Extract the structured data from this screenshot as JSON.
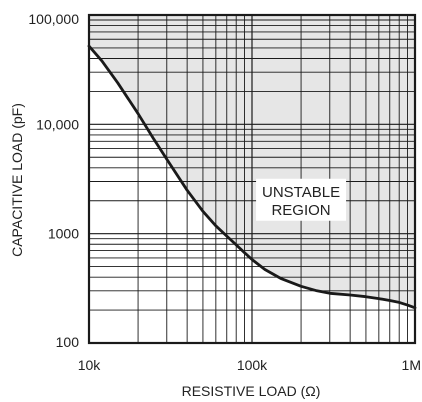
{
  "chart_data": {
    "type": "line",
    "title": "",
    "xlabel": "RESISTIVE LOAD (Ω)",
    "ylabel": "CAPACITIVE LOAD (pF)",
    "x_scale": "log",
    "y_scale": "log",
    "xlim": [
      10000,
      1000000
    ],
    "ylim": [
      100,
      100000
    ],
    "grid": true,
    "x_ticks": [
      {
        "value": 10000,
        "label": "10k"
      },
      {
        "value": 100000,
        "label": "100k"
      },
      {
        "value": 1000000,
        "label": "1M"
      }
    ],
    "y_ticks": [
      {
        "value": 100,
        "label": "100"
      },
      {
        "value": 1000,
        "label": "1000"
      },
      {
        "value": 10000,
        "label": "10,000"
      },
      {
        "value": 100000,
        "label": "100,000"
      }
    ],
    "annotations": [
      {
        "text_lines": [
          "UNSTABLE",
          "REGION"
        ],
        "x": 200000,
        "y": 2000
      }
    ],
    "shaded_region": {
      "label": "UNSTABLE REGION",
      "fill": "#e6e6e6",
      "side": "above-curve"
    },
    "series": [
      {
        "x": [
          10000,
          12000,
          15000,
          20000,
          25000,
          30000,
          40000,
          50000,
          60000,
          70000,
          80000,
          90000,
          100000,
          120000,
          150000,
          200000,
          250000,
          300000,
          400000,
          500000,
          600000,
          700000,
          800000,
          900000,
          1000000
        ],
        "y": [
          52000,
          38000,
          24000,
          12500,
          7300,
          4800,
          2500,
          1600,
          1180,
          950,
          790,
          670,
          580,
          470,
          390,
          330,
          300,
          285,
          275,
          265,
          255,
          245,
          235,
          222,
          210
        ],
        "color": "#1a1a1a"
      }
    ]
  }
}
